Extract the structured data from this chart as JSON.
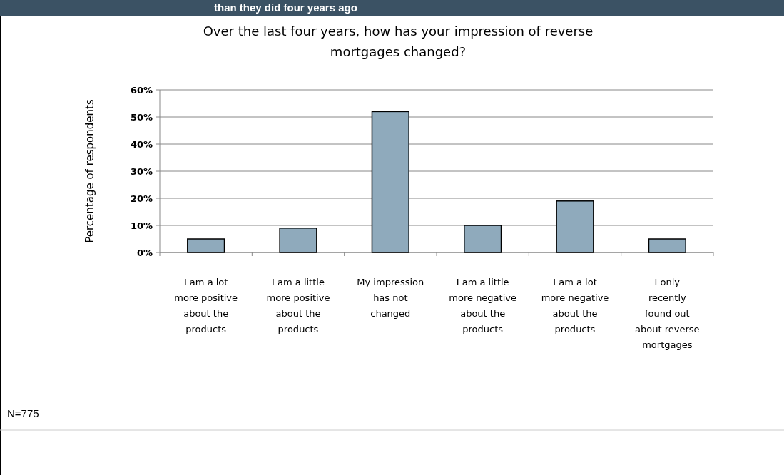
{
  "chart_data": {
    "type": "bar",
    "subtitle": "than they did four years ago",
    "title": "Over the last four years, how has your impression of reverse mortgages changed?",
    "ylabel": "Percentage of respondents",
    "categories": [
      "I am a lot more positive about the products",
      "I am a little more positive about the products",
      "My impression has not changed",
      "I am a little more negative about the products",
      "I am a lot more negative about the products",
      "I only recently found out about reverse mortgages"
    ],
    "values": [
      5,
      9,
      52,
      10,
      19,
      5
    ],
    "color": "#8faabc",
    "ylim": [
      0,
      60
    ],
    "yticks": [
      {
        "value": 0,
        "label": "0%"
      },
      {
        "value": 10,
        "label": "10%"
      },
      {
        "value": 20,
        "label": "20%"
      },
      {
        "value": 30,
        "label": "30%"
      },
      {
        "value": 40,
        "label": "40%"
      },
      {
        "value": 50,
        "label": "50%"
      },
      {
        "value": 60,
        "label": "60%"
      }
    ],
    "grid": "y",
    "annotations": [
      "N=775"
    ]
  }
}
